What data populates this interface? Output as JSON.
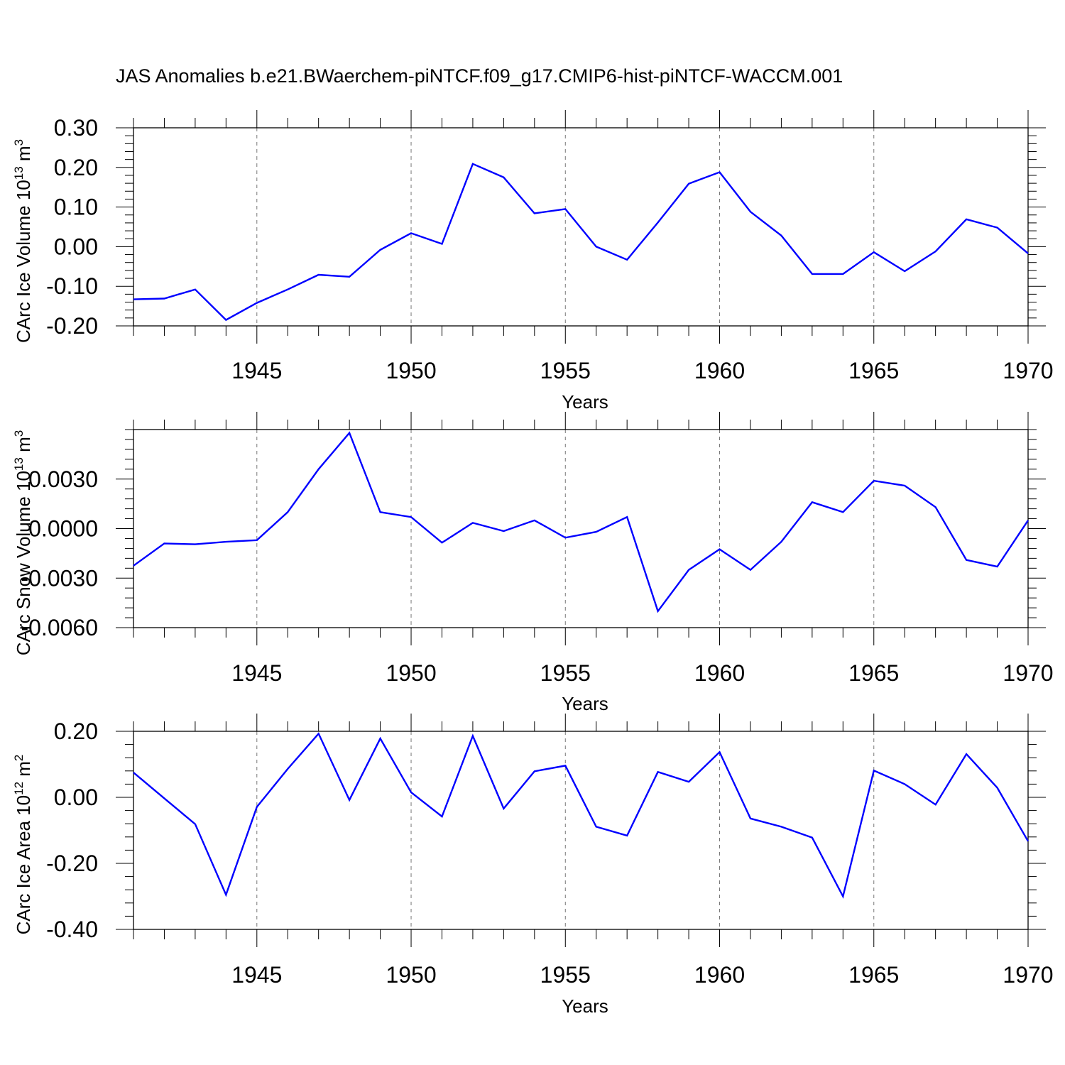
{
  "figure_title": "JAS Anomalies b.e21.BWaerchem-piNTCF.f09_g17.CMIP6-hist-piNTCF-WACCM.001",
  "line_color": "#0000ff",
  "chart_data": [
    {
      "type": "line",
      "name": "ice-volume",
      "ylabel": "CArc Ice Volume 10",
      "ylabel_sup": "13",
      "ylabel_unit": " m",
      "ylabel_unit_sup": "3",
      "xlabel": "Years",
      "xlim": [
        1941,
        1970
      ],
      "ylim": [
        -0.2,
        0.3
      ],
      "x_ticks": [
        "1945",
        "1950",
        "1955",
        "1960",
        "1965",
        "1970"
      ],
      "y_ticks": [
        "-0.20",
        "-0.10",
        "0.00",
        "0.10",
        "0.20",
        "0.30"
      ],
      "series": [
        {
          "name": "CArc Ice Volume",
          "x": [
            1941,
            1942,
            1943,
            1944,
            1945,
            1946,
            1947,
            1948,
            1949,
            1950,
            1951,
            1952,
            1953,
            1954,
            1955,
            1956,
            1957,
            1958,
            1959,
            1960,
            1961,
            1962,
            1963,
            1964,
            1965,
            1966,
            1967,
            1968,
            1969,
            1970
          ],
          "values": [
            -0.133,
            -0.131,
            -0.108,
            -0.185,
            -0.142,
            -0.108,
            -0.071,
            -0.076,
            -0.008,
            0.034,
            0.007,
            0.209,
            0.175,
            0.084,
            0.095,
            0.0,
            -0.033,
            0.061,
            0.159,
            0.188,
            0.088,
            0.028,
            -0.069,
            -0.069,
            -0.014,
            -0.062,
            -0.012,
            0.069,
            0.048,
            -0.017
          ]
        }
      ]
    },
    {
      "type": "line",
      "name": "snow-volume",
      "ylabel": "CArc Snow Volume 10",
      "ylabel_sup": "13",
      "ylabel_unit": " m",
      "ylabel_unit_sup": "3",
      "xlabel": "Years",
      "xlim": [
        1941,
        1970
      ],
      "ylim": [
        -0.006,
        0.006
      ],
      "x_ticks": [
        "1945",
        "1950",
        "1955",
        "1960",
        "1965",
        "1970"
      ],
      "y_ticks": [
        "-0.0060",
        "-0.0030",
        "0.0000",
        "0.0030"
      ],
      "series": [
        {
          "name": "CArc Snow Volume",
          "x": [
            1941,
            1942,
            1943,
            1944,
            1945,
            1946,
            1947,
            1948,
            1949,
            1950,
            1951,
            1952,
            1953,
            1954,
            1955,
            1956,
            1957,
            1958,
            1959,
            1960,
            1961,
            1962,
            1963,
            1964,
            1965,
            1966,
            1967,
            1968,
            1969,
            1970
          ],
          "values": [
            -0.00225,
            -0.0009,
            -0.00095,
            -0.0008,
            -0.0007,
            0.001,
            0.0036,
            0.0058,
            0.001,
            0.0007,
            -0.00085,
            0.00035,
            -0.00015,
            0.0005,
            -0.00055,
            -0.0002,
            0.0007,
            -0.005,
            -0.0025,
            -0.00125,
            -0.0025,
            -0.0008,
            0.0016,
            0.001,
            0.0029,
            0.0026,
            0.0013,
            -0.0019,
            -0.0023,
            0.0005
          ]
        }
      ]
    },
    {
      "type": "line",
      "name": "ice-area",
      "ylabel": "CArc Ice Area 10",
      "ylabel_sup": "12",
      "ylabel_unit": " m",
      "ylabel_unit_sup": "2",
      "xlabel": "Years",
      "xlim": [
        1941,
        1970
      ],
      "ylim": [
        -0.4,
        0.2
      ],
      "x_ticks": [
        "1945",
        "1950",
        "1955",
        "1960",
        "1965",
        "1970"
      ],
      "y_ticks": [
        "-0.40",
        "-0.20",
        "0.00",
        "0.20"
      ],
      "series": [
        {
          "name": "CArc Ice Area",
          "x": [
            1941,
            1942,
            1943,
            1944,
            1945,
            1946,
            1947,
            1948,
            1949,
            1950,
            1951,
            1952,
            1953,
            1954,
            1955,
            1956,
            1957,
            1958,
            1959,
            1960,
            1961,
            1962,
            1963,
            1964,
            1965,
            1966,
            1967,
            1968,
            1969,
            1970
          ],
          "values": [
            0.075,
            -0.003,
            -0.081,
            -0.295,
            -0.029,
            0.086,
            0.193,
            -0.008,
            0.178,
            0.015,
            -0.058,
            0.186,
            -0.034,
            0.079,
            0.096,
            -0.089,
            -0.116,
            0.077,
            0.047,
            0.137,
            -0.064,
            -0.089,
            -0.122,
            -0.3,
            0.081,
            0.04,
            -0.022,
            0.131,
            0.029,
            -0.133
          ]
        }
      ]
    }
  ]
}
